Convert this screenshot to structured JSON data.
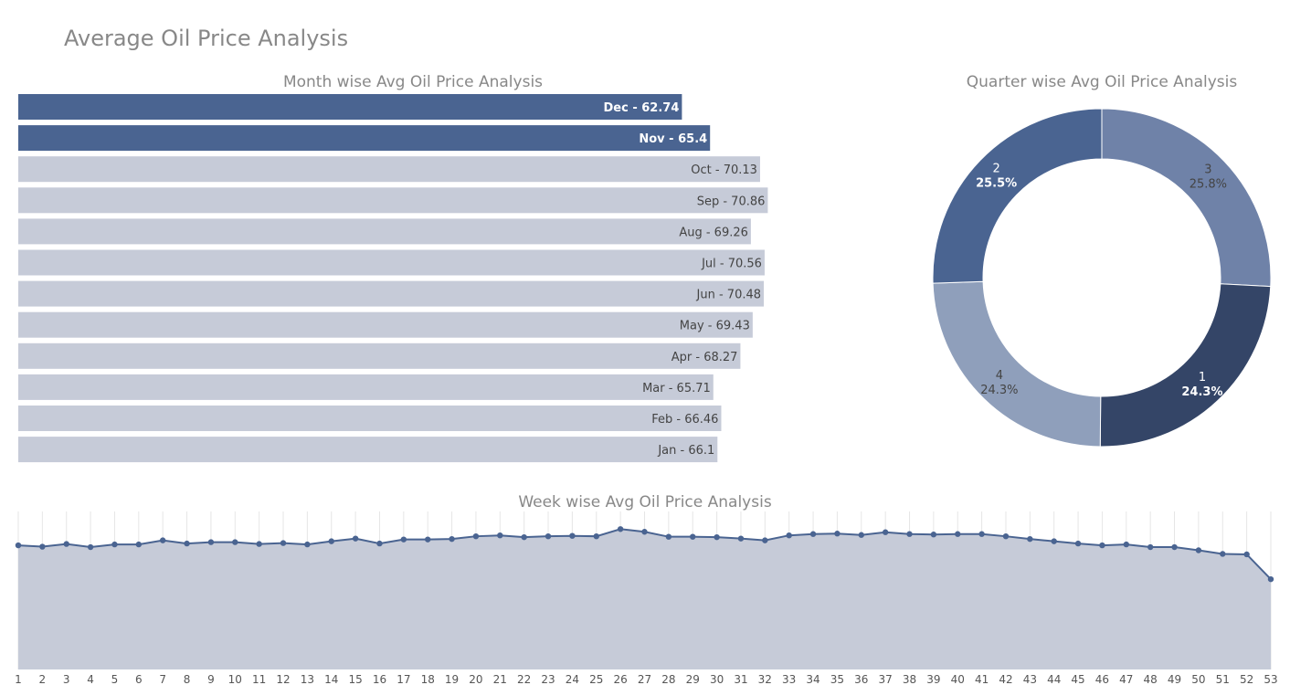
{
  "page_title": "Average Oil Price Analysis",
  "colors": {
    "highlight_bar": "#4a6491",
    "bar": "#c6cbd8",
    "line": "#4a6491",
    "area": "#c6cbd8",
    "title": "#888888",
    "donut": [
      "#344567",
      "#4a6491",
      "#6f82a8",
      "#8f9fbb"
    ]
  },
  "chart_data": [
    {
      "id": "month",
      "type": "bar",
      "orientation": "horizontal",
      "title": "Month wise Avg Oil Price Analysis",
      "categories": [
        "Dec",
        "Nov",
        "Oct",
        "Sep",
        "Aug",
        "Jul",
        "Jun",
        "May",
        "Apr",
        "Mar",
        "Feb",
        "Jan"
      ],
      "values": [
        62.74,
        65.4,
        70.13,
        70.86,
        69.26,
        70.56,
        70.48,
        69.43,
        68.27,
        65.71,
        66.46,
        66.1
      ],
      "labels": [
        "Dec - 62.74",
        "Nov - 65.4",
        "Oct - 70.13",
        "Sep - 70.86",
        "Aug - 69.26",
        "Jul - 70.56",
        "Jun - 70.48",
        "May - 69.43",
        "Apr - 68.27",
        "Mar - 65.71",
        "Feb - 66.46",
        "Jan - 66.1"
      ],
      "highlighted": [
        "Dec",
        "Nov"
      ],
      "xlim": [
        0,
        86
      ]
    },
    {
      "id": "quarter",
      "type": "pie",
      "hole": true,
      "title": "Quarter wise Avg Oil Price Analysis",
      "slices": [
        {
          "label": "3",
          "percent": "25.8%",
          "value": 25.8
        },
        {
          "label": "1",
          "percent": "24.3%",
          "value": 24.3
        },
        {
          "label": "4",
          "percent": "24.3%",
          "value": 24.3
        },
        {
          "label": "2",
          "percent": "25.5%",
          "value": 25.5
        }
      ]
    },
    {
      "id": "week",
      "type": "area",
      "title": "Week wise Avg Oil Price Analysis",
      "x": [
        1,
        2,
        3,
        4,
        5,
        6,
        7,
        8,
        9,
        10,
        11,
        12,
        13,
        14,
        15,
        16,
        17,
        18,
        19,
        20,
        21,
        22,
        23,
        24,
        25,
        26,
        27,
        28,
        29,
        30,
        31,
        32,
        33,
        34,
        35,
        36,
        37,
        38,
        39,
        40,
        41,
        42,
        43,
        44,
        45,
        46,
        47,
        48,
        49,
        50,
        51,
        52,
        53
      ],
      "values": [
        67.5,
        67.2,
        67.8,
        67.1,
        67.7,
        67.7,
        68.6,
        67.9,
        68.2,
        68.2,
        67.8,
        68.0,
        67.7,
        68.4,
        69.0,
        67.9,
        68.8,
        68.8,
        68.9,
        69.5,
        69.7,
        69.3,
        69.5,
        69.6,
        69.5,
        71.1,
        70.5,
        69.4,
        69.4,
        69.3,
        69.0,
        68.6,
        69.7,
        70.0,
        70.1,
        69.8,
        70.4,
        70.0,
        69.9,
        70.0,
        70.0,
        69.5,
        68.9,
        68.4,
        67.9,
        67.5,
        67.7,
        67.1,
        67.1,
        66.4,
        65.6,
        65.5,
        60.0
      ],
      "ylim": [
        40,
        75
      ]
    }
  ]
}
